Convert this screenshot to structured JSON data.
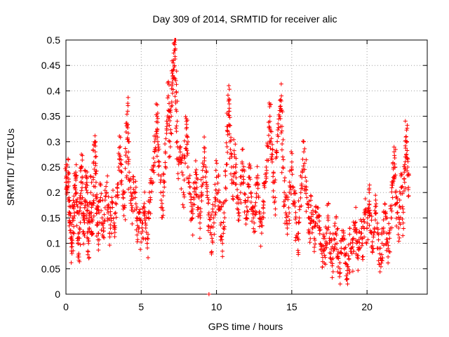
{
  "chart_data": {
    "type": "scatter",
    "title": "Day 309 of 2014, SRMTID for receiver alic",
    "xlabel": "GPS time / hours",
    "ylabel": "SRMTID / TECUs",
    "xlim": [
      0,
      24
    ],
    "ylim": [
      0,
      0.5
    ],
    "xticks": [
      0,
      5,
      10,
      15,
      20
    ],
    "yticks": [
      0,
      0.05,
      0.1,
      0.15,
      0.2,
      0.25,
      0.3,
      0.35,
      0.4,
      0.45,
      0.5
    ],
    "xtick_labels": [
      "0",
      "5",
      "10",
      "15",
      "20"
    ],
    "ytick_labels": [
      "0",
      "0.05",
      "0.1",
      "0.15",
      "0.2",
      "0.25",
      "0.3",
      "0.35",
      "0.4",
      "0.45",
      "0.5"
    ],
    "grid": true,
    "marker": "+",
    "series_color": "#ff0000",
    "series": [
      {
        "name": "SRMTID",
        "points": [
          [
            0.0,
            0.22
          ],
          [
            0.05,
            0.23
          ],
          [
            0.1,
            0.21
          ],
          [
            0.15,
            0.24
          ],
          [
            0.2,
            0.19
          ],
          [
            0.25,
            0.16
          ],
          [
            0.3,
            0.14
          ],
          [
            0.35,
            0.1
          ],
          [
            0.4,
            0.08
          ],
          [
            0.45,
            0.15
          ],
          [
            0.5,
            0.12
          ],
          [
            0.55,
            0.18
          ],
          [
            0.6,
            0.21
          ],
          [
            0.65,
            0.24
          ],
          [
            0.7,
            0.2
          ],
          [
            0.75,
            0.16
          ],
          [
            0.8,
            0.11
          ],
          [
            0.85,
            0.08
          ],
          [
            0.9,
            0.13
          ],
          [
            0.95,
            0.17
          ],
          [
            1.0,
            0.22
          ],
          [
            1.05,
            0.25
          ],
          [
            1.1,
            0.19
          ],
          [
            1.15,
            0.15
          ],
          [
            1.2,
            0.12
          ],
          [
            1.25,
            0.17
          ],
          [
            1.3,
            0.21
          ],
          [
            1.35,
            0.23
          ],
          [
            1.4,
            0.18
          ],
          [
            1.45,
            0.14
          ],
          [
            1.5,
            0.1
          ],
          [
            1.55,
            0.13
          ],
          [
            1.6,
            0.16
          ],
          [
            1.65,
            0.2
          ],
          [
            1.7,
            0.15
          ],
          [
            1.75,
            0.12
          ],
          [
            1.8,
            0.18
          ],
          [
            1.85,
            0.26
          ],
          [
            1.9,
            0.3
          ],
          [
            1.95,
            0.27
          ],
          [
            2.0,
            0.22
          ],
          [
            2.05,
            0.17
          ],
          [
            2.1,
            0.14
          ],
          [
            2.15,
            0.12
          ],
          [
            2.2,
            0.16
          ],
          [
            2.3,
            0.19
          ],
          [
            2.4,
            0.15
          ],
          [
            2.5,
            0.13
          ],
          [
            2.6,
            0.17
          ],
          [
            2.7,
            0.2
          ],
          [
            2.8,
            0.16
          ],
          [
            2.9,
            0.12
          ],
          [
            3.0,
            0.15
          ],
          [
            3.1,
            0.18
          ],
          [
            3.2,
            0.14
          ],
          [
            3.3,
            0.16
          ],
          [
            3.4,
            0.21
          ],
          [
            3.5,
            0.25
          ],
          [
            3.6,
            0.29
          ],
          [
            3.7,
            0.24
          ],
          [
            3.8,
            0.19
          ],
          [
            3.9,
            0.17
          ],
          [
            4.0,
            0.26
          ],
          [
            4.05,
            0.33
          ],
          [
            4.1,
            0.36
          ],
          [
            4.15,
            0.3
          ],
          [
            4.2,
            0.24
          ],
          [
            4.3,
            0.2
          ],
          [
            4.4,
            0.17
          ],
          [
            4.5,
            0.22
          ],
          [
            4.6,
            0.19
          ],
          [
            4.7,
            0.15
          ],
          [
            4.8,
            0.13
          ],
          [
            4.9,
            0.16
          ],
          [
            5.0,
            0.12
          ],
          [
            5.1,
            0.14
          ],
          [
            5.2,
            0.17
          ],
          [
            5.3,
            0.13
          ],
          [
            5.4,
            0.1
          ],
          [
            5.5,
            0.15
          ],
          [
            5.6,
            0.19
          ],
          [
            5.7,
            0.22
          ],
          [
            5.8,
            0.25
          ],
          [
            5.9,
            0.28
          ],
          [
            6.0,
            0.32
          ],
          [
            6.05,
            0.35
          ],
          [
            6.1,
            0.3
          ],
          [
            6.2,
            0.26
          ],
          [
            6.3,
            0.2
          ],
          [
            6.4,
            0.17
          ],
          [
            6.5,
            0.22
          ],
          [
            6.6,
            0.28
          ],
          [
            6.7,
            0.33
          ],
          [
            6.8,
            0.39
          ],
          [
            6.85,
            0.36
          ],
          [
            6.9,
            0.3
          ],
          [
            7.0,
            0.35
          ],
          [
            7.05,
            0.41
          ],
          [
            7.1,
            0.43
          ],
          [
            7.15,
            0.46
          ],
          [
            7.2,
            0.48
          ],
          [
            7.25,
            0.5
          ],
          [
            7.3,
            0.42
          ],
          [
            7.35,
            0.36
          ],
          [
            7.4,
            0.3
          ],
          [
            7.5,
            0.26
          ],
          [
            7.6,
            0.29
          ],
          [
            7.7,
            0.24
          ],
          [
            7.8,
            0.2
          ],
          [
            7.9,
            0.27
          ],
          [
            8.0,
            0.34
          ],
          [
            8.05,
            0.31
          ],
          [
            8.1,
            0.25
          ],
          [
            8.2,
            0.22
          ],
          [
            8.3,
            0.18
          ],
          [
            8.4,
            0.15
          ],
          [
            8.5,
            0.19
          ],
          [
            8.6,
            0.24
          ],
          [
            8.7,
            0.21
          ],
          [
            8.8,
            0.17
          ],
          [
            8.9,
            0.14
          ],
          [
            9.0,
            0.2
          ],
          [
            9.1,
            0.23
          ],
          [
            9.2,
            0.28
          ],
          [
            9.3,
            0.25
          ],
          [
            9.4,
            0.19
          ],
          [
            9.5,
            0.16
          ],
          [
            9.6,
            0.13
          ],
          [
            9.7,
            0.11
          ],
          [
            9.8,
            0.15
          ],
          [
            9.9,
            0.19
          ],
          [
            10.0,
            0.23
          ],
          [
            10.1,
            0.2
          ],
          [
            10.2,
            0.17
          ],
          [
            10.3,
            0.14
          ],
          [
            10.4,
            0.1
          ],
          [
            10.5,
            0.16
          ],
          [
            10.6,
            0.21
          ],
          [
            10.7,
            0.29
          ],
          [
            10.75,
            0.33
          ],
          [
            10.8,
            0.38
          ],
          [
            10.85,
            0.36
          ],
          [
            10.9,
            0.3
          ],
          [
            11.0,
            0.25
          ],
          [
            11.1,
            0.22
          ],
          [
            11.2,
            0.27
          ],
          [
            11.3,
            0.24
          ],
          [
            11.4,
            0.19
          ],
          [
            11.5,
            0.16
          ],
          [
            11.6,
            0.2
          ],
          [
            11.7,
            0.26
          ],
          [
            11.8,
            0.22
          ],
          [
            11.9,
            0.18
          ],
          [
            12.0,
            0.15
          ],
          [
            12.1,
            0.19
          ],
          [
            12.2,
            0.23
          ],
          [
            12.3,
            0.2
          ],
          [
            12.4,
            0.17
          ],
          [
            12.5,
            0.14
          ],
          [
            12.6,
            0.18
          ],
          [
            12.7,
            0.22
          ],
          [
            12.8,
            0.19
          ],
          [
            12.9,
            0.15
          ],
          [
            13.0,
            0.12
          ],
          [
            13.1,
            0.17
          ],
          [
            13.2,
            0.21
          ],
          [
            13.3,
            0.25
          ],
          [
            13.4,
            0.29
          ],
          [
            13.5,
            0.33
          ],
          [
            13.55,
            0.35
          ],
          [
            13.6,
            0.3
          ],
          [
            13.7,
            0.26
          ],
          [
            13.8,
            0.22
          ],
          [
            13.9,
            0.19
          ],
          [
            14.0,
            0.27
          ],
          [
            14.1,
            0.31
          ],
          [
            14.2,
            0.35
          ],
          [
            14.3,
            0.38
          ],
          [
            14.35,
            0.33
          ],
          [
            14.4,
            0.27
          ],
          [
            14.5,
            0.2
          ],
          [
            14.6,
            0.16
          ],
          [
            14.7,
            0.13
          ],
          [
            14.8,
            0.17
          ],
          [
            14.9,
            0.21
          ],
          [
            15.0,
            0.25
          ],
          [
            15.1,
            0.21
          ],
          [
            15.2,
            0.18
          ],
          [
            15.3,
            0.14
          ],
          [
            15.4,
            0.11
          ],
          [
            15.5,
            0.15
          ],
          [
            15.6,
            0.2
          ],
          [
            15.7,
            0.24
          ],
          [
            15.8,
            0.28
          ],
          [
            15.9,
            0.23
          ],
          [
            16.0,
            0.19
          ],
          [
            16.1,
            0.15
          ],
          [
            16.2,
            0.12
          ],
          [
            16.3,
            0.16
          ],
          [
            16.4,
            0.13
          ],
          [
            16.5,
            0.11
          ],
          [
            16.6,
            0.14
          ],
          [
            16.7,
            0.17
          ],
          [
            16.8,
            0.13
          ],
          [
            16.9,
            0.1
          ],
          [
            17.0,
            0.08
          ],
          [
            17.1,
            0.11
          ],
          [
            17.2,
            0.09
          ],
          [
            17.3,
            0.12
          ],
          [
            17.4,
            0.15
          ],
          [
            17.5,
            0.11
          ],
          [
            17.6,
            0.08
          ],
          [
            17.7,
            0.06
          ],
          [
            17.8,
            0.09
          ],
          [
            17.9,
            0.12
          ],
          [
            18.0,
            0.1
          ],
          [
            18.1,
            0.07
          ],
          [
            18.2,
            0.05
          ],
          [
            18.3,
            0.08
          ],
          [
            18.4,
            0.11
          ],
          [
            18.5,
            0.09
          ],
          [
            18.6,
            0.06
          ],
          [
            18.7,
            0.04
          ],
          [
            18.8,
            0.07
          ],
          [
            18.9,
            0.1
          ],
          [
            19.0,
            0.08
          ],
          [
            19.1,
            0.11
          ],
          [
            19.2,
            0.14
          ],
          [
            19.3,
            0.1
          ],
          [
            19.4,
            0.07
          ],
          [
            19.5,
            0.09
          ],
          [
            19.6,
            0.12
          ],
          [
            19.7,
            0.1
          ],
          [
            19.8,
            0.13
          ],
          [
            19.9,
            0.16
          ],
          [
            20.0,
            0.13
          ],
          [
            20.1,
            0.17
          ],
          [
            20.15,
            0.2
          ],
          [
            20.2,
            0.16
          ],
          [
            20.3,
            0.12
          ],
          [
            20.4,
            0.09
          ],
          [
            20.5,
            0.13
          ],
          [
            20.6,
            0.16
          ],
          [
            20.7,
            0.12
          ],
          [
            20.8,
            0.09
          ],
          [
            20.9,
            0.07
          ],
          [
            21.0,
            0.1
          ],
          [
            21.1,
            0.13
          ],
          [
            21.2,
            0.16
          ],
          [
            21.3,
            0.12
          ],
          [
            21.4,
            0.09
          ],
          [
            21.5,
            0.11
          ],
          [
            21.6,
            0.15
          ],
          [
            21.7,
            0.19
          ],
          [
            21.75,
            0.23
          ],
          [
            21.8,
            0.28
          ],
          [
            21.85,
            0.25
          ],
          [
            21.9,
            0.2
          ],
          [
            22.0,
            0.16
          ],
          [
            22.1,
            0.13
          ],
          [
            22.2,
            0.17
          ],
          [
            22.3,
            0.21
          ],
          [
            22.4,
            0.14
          ],
          [
            22.5,
            0.22
          ],
          [
            22.55,
            0.27
          ],
          [
            22.6,
            0.31
          ],
          [
            22.65,
            0.3
          ],
          [
            22.7,
            0.25
          ],
          [
            22.75,
            0.21
          ]
        ]
      }
    ],
    "outliers": [
      [
        9.5,
        0.0
      ]
    ]
  }
}
